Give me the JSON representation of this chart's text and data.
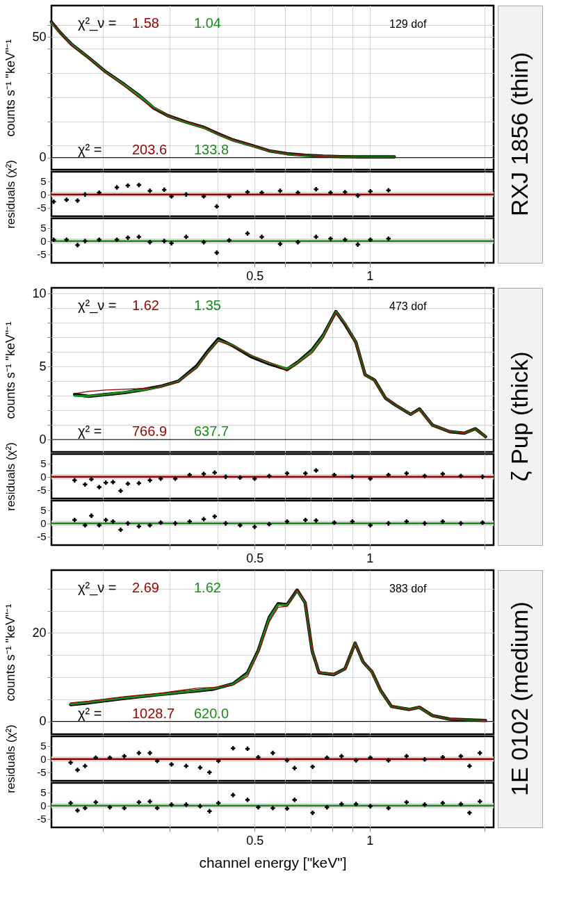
{
  "chart_data": [
    {
      "type": "line",
      "title": "RXJ 1856  (thin)",
      "ylabel": "counts  s⁻¹  \"keV\"⁻¹",
      "log": "x",
      "grid": true,
      "tick_labels": "y",
      "xlim": [
        0.147,
        2.11
      ],
      "xticks": [
        {
          "value": 0.2,
          "label": null
        },
        {
          "value": 0.3,
          "label": null
        },
        {
          "value": 0.4,
          "label": null
        },
        0.5,
        {
          "value": 0.6,
          "label": null
        },
        {
          "value": 0.7,
          "label": null
        },
        {
          "value": 0.8,
          "label": null
        },
        {
          "value": 0.9,
          "label": null
        },
        1,
        {
          "value": 2,
          "label": null
        }
      ],
      "ylim": [
        -5,
        63
      ],
      "yticks": [
        0,
        {
          "value": 5,
          "label": null
        },
        {
          "value": 15,
          "label": null
        },
        {
          "value": 25,
          "label": null
        },
        {
          "value": 35,
          "label": null
        },
        {
          "value": 45,
          "label": null
        },
        50,
        {
          "value": 55,
          "label": null
        }
      ],
      "x": [
        0.147,
        0.155,
        0.166,
        0.184,
        0.204,
        0.228,
        0.249,
        0.272,
        0.296,
        0.331,
        0.369,
        0.402,
        0.439,
        0.5,
        0.546,
        0.608,
        0.679,
        0.756,
        0.844,
        0.94,
        1.05,
        1.16
      ],
      "series": [
        {
          "color": "#000000",
          "values": [
            56.2,
            51.8,
            46.9,
            41.4,
            35.5,
            30.3,
            25.8,
            20.6,
            17.4,
            14.7,
            12.5,
            9.8,
            7.3,
            4.7,
            2.8,
            1.6,
            1.0,
            0.6,
            0.4,
            0.3,
            0.3,
            0.3
          ]
        },
        {
          "color": "#990000",
          "values": [
            56.5,
            51.6,
            46.5,
            41.0,
            35.2,
            29.6,
            24.9,
            20.3,
            17.5,
            14.9,
            12.6,
            9.9,
            7.4,
            4.8,
            2.9,
            1.6,
            1.0,
            0.6,
            0.4,
            0.3,
            0.3,
            0.3
          ]
        },
        {
          "color": "#1a8c1a",
          "values": [
            56.0,
            51.7,
            46.8,
            41.3,
            35.4,
            30.2,
            25.7,
            20.8,
            17.4,
            14.6,
            12.4,
            9.7,
            7.2,
            4.6,
            2.8,
            1.5,
            0.9,
            0.6,
            0.4,
            0.3,
            0.3,
            0.3
          ]
        }
      ],
      "ref_lines": [
        {
          "axis": "y",
          "value": 0,
          "color": "#000000"
        }
      ],
      "annotations": [
        "χ²_ν =",
        "1.58",
        "1.04",
        "129 dof",
        "χ² =",
        "203.6",
        "133.8"
      ]
    },
    {
      "type": "scatter",
      "ylabel": "residuals (χ²)",
      "log": "x",
      "grid": "x",
      "tick_labels": "y",
      "marker": "cross",
      "xlim": [
        0.147,
        2.11
      ],
      "xticks": [
        {
          "value": 0.2,
          "label": null
        },
        {
          "value": 0.3,
          "label": null
        },
        {
          "value": 0.4,
          "label": null
        },
        0.5,
        {
          "value": 0.6,
          "label": null
        },
        {
          "value": 0.7,
          "label": null
        },
        {
          "value": 0.8,
          "label": null
        },
        {
          "value": 0.9,
          "label": null
        },
        1,
        {
          "value": 2,
          "label": null
        }
      ],
      "ylim": [
        -8.2,
        8.6
      ],
      "yticks": [
        -5,
        0,
        5
      ],
      "x": [
        0.149,
        0.161,
        0.172,
        0.18,
        0.196,
        0.218,
        0.233,
        0.249,
        0.266,
        0.29,
        0.303,
        0.331,
        0.368,
        0.398,
        0.429,
        0.479,
        0.522,
        0.583,
        0.649,
        0.724,
        0.79,
        0.862,
        0.931,
        1.004,
        1.12
      ],
      "series": [
        {
          "color": "#000000",
          "values": [
            -2.7,
            -2.0,
            -2.3,
            0,
            0.7,
            2.7,
            3.4,
            3.6,
            1.4,
            1.8,
            -0.7,
            0,
            -0.7,
            -4.5,
            -0.7,
            0.9,
            0.7,
            1.4,
            0.7,
            2.0,
            0.7,
            0.9,
            -0.4,
            1.2,
            1.6
          ]
        }
      ],
      "bands": [
        {
          "axis": "y",
          "from": -1,
          "to": 1,
          "color": "#dcdcdc"
        }
      ],
      "ref_lines": [
        {
          "axis": "y",
          "value": 0,
          "color": "#990000"
        }
      ]
    },
    {
      "type": "scatter",
      "log": "x",
      "grid": "x",
      "marker": "cross",
      "xlim": [
        0.147,
        2.11
      ],
      "xticks": [
        {
          "value": 0.2,
          "label": null
        },
        {
          "value": 0.3,
          "label": null
        },
        {
          "value": 0.4,
          "label": null
        },
        0.5,
        {
          "value": 0.6,
          "label": null
        },
        {
          "value": 0.7,
          "label": null
        },
        {
          "value": 0.8,
          "label": null
        },
        {
          "value": 0.9,
          "label": null
        },
        1,
        {
          "value": 2,
          "label": null
        }
      ],
      "ylim": [
        -8.2,
        8.6
      ],
      "yticks": [
        -5,
        0,
        5
      ],
      "x": [
        0.149,
        0.161,
        0.172,
        0.18,
        0.196,
        0.218,
        0.233,
        0.249,
        0.266,
        0.29,
        0.303,
        0.331,
        0.368,
        0.398,
        0.429,
        0.479,
        0.522,
        0.583,
        0.649,
        0.724,
        0.79,
        0.862,
        0.931,
        1.004,
        1.12
      ],
      "series": [
        {
          "color": "#000000",
          "values": [
            0.5,
            0.5,
            -1.5,
            0,
            0.5,
            0.5,
            1.3,
            1.6,
            -0.4,
            0,
            -0.8,
            1.6,
            -0.4,
            -4.4,
            0.3,
            2.9,
            1.6,
            -1.1,
            -0.4,
            1.6,
            0.9,
            0.5,
            -1.3,
            0.5,
            0.9
          ]
        }
      ],
      "bands": [
        {
          "axis": "y",
          "from": -1,
          "to": 1,
          "color": "#dcdcdc"
        }
      ],
      "ref_lines": [
        {
          "axis": "y",
          "value": 0,
          "color": "#1a8c1a"
        }
      ]
    },
    {
      "type": "line",
      "title": "ζ Pup  (thick)",
      "ylabel": "counts  s⁻¹  \"keV\"⁻¹",
      "log": "x",
      "grid": true,
      "tick_labels": "y",
      "xlim": [
        0.147,
        2.11
      ],
      "xticks": [
        {
          "value": 0.2,
          "label": null
        },
        {
          "value": 0.3,
          "label": null
        },
        {
          "value": 0.4,
          "label": null
        },
        0.5,
        {
          "value": 0.6,
          "label": null
        },
        {
          "value": 0.7,
          "label": null
        },
        {
          "value": 0.8,
          "label": null
        },
        {
          "value": 0.9,
          "label": null
        },
        1,
        {
          "value": 2,
          "label": null
        }
      ],
      "ylim": [
        -0.85,
        10.4
      ],
      "yticks": [
        0,
        {
          "value": 1,
          "label": null
        },
        {
          "value": 2,
          "label": null
        },
        {
          "value": 3,
          "label": null
        },
        {
          "value": 4,
          "label": null
        },
        5,
        {
          "value": 6,
          "label": null
        },
        {
          "value": 7,
          "label": null
        },
        {
          "value": 8,
          "label": null
        },
        {
          "value": 9,
          "label": null
        },
        10
      ],
      "x": [
        0.169,
        0.184,
        0.204,
        0.228,
        0.254,
        0.284,
        0.316,
        0.353,
        0.377,
        0.402,
        0.439,
        0.49,
        0.546,
        0.608,
        0.649,
        0.708,
        0.756,
        0.816,
        0.862,
        0.92,
        0.973,
        1.03,
        1.1,
        1.17,
        1.28,
        1.35,
        1.46,
        1.62,
        1.77,
        1.89,
        2.01
      ],
      "series": [
        {
          "color": "#000000",
          "values": [
            3.09,
            2.96,
            3.09,
            3.21,
            3.41,
            3.65,
            4.0,
            5.06,
            6.05,
            6.91,
            6.42,
            5.68,
            5.19,
            4.81,
            5.31,
            6.17,
            7.16,
            8.77,
            7.9,
            6.67,
            4.44,
            4.07,
            2.84,
            2.35,
            1.73,
            2.1,
            0.99,
            0.54,
            0.44,
            0.74,
            0.2
          ]
        },
        {
          "color": "#990000",
          "values": [
            3.15,
            3.3,
            3.4,
            3.45,
            3.5,
            3.6,
            3.95,
            4.9,
            5.9,
            6.75,
            6.4,
            5.75,
            5.3,
            4.7,
            5.2,
            5.95,
            6.95,
            8.7,
            7.9,
            6.6,
            4.45,
            4.05,
            2.85,
            2.35,
            1.75,
            2.05,
            1.0,
            0.55,
            0.45,
            0.72,
            0.2
          ]
        },
        {
          "color": "#1a8c1a",
          "values": [
            3.0,
            2.98,
            3.1,
            3.25,
            3.4,
            3.62,
            3.98,
            4.95,
            5.95,
            6.8,
            6.45,
            5.75,
            5.25,
            4.85,
            5.28,
            6.1,
            7.1,
            8.75,
            7.95,
            6.65,
            4.45,
            4.05,
            2.85,
            2.35,
            1.74,
            2.06,
            1.0,
            0.55,
            0.45,
            0.72,
            0.2
          ]
        }
      ],
      "ref_lines": [
        {
          "axis": "y",
          "value": 0,
          "color": "#000000"
        }
      ],
      "annotations": [
        "χ²_ν =",
        "1.62",
        "1.35",
        "473 dof",
        "χ² =",
        "766.9",
        "637.7"
      ]
    },
    {
      "type": "scatter",
      "ylabel": "residuals (χ²)",
      "log": "x",
      "grid": "x",
      "tick_labels": "y",
      "marker": "cross",
      "xlim": [
        0.147,
        2.11
      ],
      "xticks": [
        {
          "value": 0.2,
          "label": null
        },
        {
          "value": 0.3,
          "label": null
        },
        {
          "value": 0.4,
          "label": null
        },
        0.5,
        {
          "value": 0.6,
          "label": null
        },
        {
          "value": 0.7,
          "label": null
        },
        {
          "value": 0.8,
          "label": null
        },
        {
          "value": 0.9,
          "label": null
        },
        1,
        {
          "value": 2,
          "label": null
        }
      ],
      "ylim": [
        -8.2,
        8.6
      ],
      "yticks": [
        -5,
        0,
        5
      ],
      "x": [
        0.169,
        0.18,
        0.187,
        0.196,
        0.204,
        0.213,
        0.223,
        0.233,
        0.249,
        0.266,
        0.284,
        0.31,
        0.338,
        0.368,
        0.393,
        0.42,
        0.458,
        0.5,
        0.546,
        0.608,
        0.679,
        0.724,
        0.808,
        0.901,
        1.004,
        1.12,
        1.249,
        1.393,
        1.553,
        1.732,
        1.974
      ],
      "series": [
        {
          "color": "#000000",
          "values": [
            -1.3,
            -2.9,
            -0.9,
            -3.9,
            -2.2,
            -2.0,
            -5.3,
            -2.6,
            -2.4,
            -1.3,
            -0.7,
            -0.7,
            0.7,
            1.1,
            1.6,
            0,
            -0.3,
            -0.7,
            0.3,
            1.3,
            1.3,
            2.4,
            0.7,
            0,
            -0.7,
            0.7,
            1.3,
            0.3,
            1.1,
            0.3,
            0
          ]
        }
      ],
      "bands": [
        {
          "axis": "y",
          "from": -1,
          "to": 1,
          "color": "#dcdcdc"
        }
      ],
      "ref_lines": [
        {
          "axis": "y",
          "value": 0,
          "color": "#990000"
        }
      ]
    },
    {
      "type": "scatter",
      "log": "x",
      "grid": "x",
      "marker": "cross",
      "xlim": [
        0.147,
        2.11
      ],
      "xticks": [
        {
          "value": 0.2,
          "label": null
        },
        {
          "value": 0.3,
          "label": null
        },
        {
          "value": 0.4,
          "label": null
        },
        0.5,
        {
          "value": 0.6,
          "label": null
        },
        {
          "value": 0.7,
          "label": null
        },
        {
          "value": 0.8,
          "label": null
        },
        {
          "value": 0.9,
          "label": null
        },
        1,
        {
          "value": 2,
          "label": null
        }
      ],
      "ylim": [
        -8.2,
        8.6
      ],
      "yticks": [
        -5,
        0,
        5
      ],
      "x": [
        0.169,
        0.18,
        0.187,
        0.196,
        0.204,
        0.213,
        0.223,
        0.233,
        0.249,
        0.266,
        0.284,
        0.31,
        0.338,
        0.368,
        0.393,
        0.42,
        0.458,
        0.5,
        0.546,
        0.608,
        0.679,
        0.724,
        0.808,
        0.901,
        1.004,
        1.12,
        1.249,
        1.393,
        1.553,
        1.732,
        1.974
      ],
      "series": [
        {
          "color": "#000000",
          "values": [
            1.3,
            -0.7,
            2.9,
            -0.7,
            1.3,
            0.7,
            -2.4,
            0,
            -1.1,
            -0.7,
            0.3,
            0,
            0.7,
            1.6,
            2.6,
            0,
            -0.7,
            -1.3,
            -0.3,
            0.7,
            1.3,
            1.1,
            0.3,
            0.7,
            -0.7,
            0,
            0.7,
            0,
            0.7,
            0,
            0.3
          ]
        }
      ],
      "bands": [
        {
          "axis": "y",
          "from": -1,
          "to": 1,
          "color": "#dcdcdc"
        }
      ],
      "ref_lines": [
        {
          "axis": "y",
          "value": 0,
          "color": "#1a8c1a"
        }
      ]
    },
    {
      "type": "line",
      "title": "1E 0102  (medium)",
      "ylabel": "counts  s⁻¹  \"keV\"⁻¹",
      "log": "x",
      "grid": true,
      "tick_labels": "y",
      "xlim": [
        0.147,
        2.11
      ],
      "xticks": [
        {
          "value": 0.2,
          "label": null
        },
        {
          "value": 0.3,
          "label": null
        },
        {
          "value": 0.4,
          "label": null
        },
        0.5,
        {
          "value": 0.6,
          "label": null
        },
        {
          "value": 0.7,
          "label": null
        },
        {
          "value": 0.8,
          "label": null
        },
        {
          "value": 0.9,
          "label": null
        },
        1,
        {
          "value": 2,
          "label": null
        }
      ],
      "ylim": [
        -2.9,
        34.2
      ],
      "yticks": [
        0,
        {
          "value": 5,
          "label": null
        },
        {
          "value": 10,
          "label": null
        },
        {
          "value": 15,
          "label": null
        },
        20,
        {
          "value": 25,
          "label": null
        },
        {
          "value": 30,
          "label": null
        }
      ],
      "x": [
        0.165,
        0.184,
        0.228,
        0.284,
        0.353,
        0.39,
        0.439,
        0.479,
        0.511,
        0.546,
        0.576,
        0.608,
        0.646,
        0.678,
        0.707,
        0.737,
        0.805,
        0.862,
        0.916,
        0.96,
        1.014,
        1.07,
        1.14,
        1.27,
        1.35,
        1.46,
        1.62,
        2.01
      ],
      "series": [
        {
          "color": "#000000",
          "values": [
            3.8,
            4.2,
            5.2,
            6.1,
            6.9,
            7.3,
            8.5,
            11.0,
            16.0,
            23.5,
            26.6,
            26.4,
            29.7,
            26.8,
            16.0,
            11.0,
            10.6,
            11.9,
            17.7,
            13.5,
            11.2,
            6.9,
            3.4,
            2.7,
            3.2,
            1.3,
            0.5,
            0.2
          ]
        },
        {
          "color": "#990000",
          "values": [
            4.2,
            4.6,
            5.6,
            6.4,
            7.5,
            7.7,
            8.2,
            10.2,
            15.5,
            22.5,
            25.8,
            26.0,
            29.8,
            27.2,
            16.5,
            11.2,
            10.8,
            11.8,
            17.9,
            13.6,
            11.3,
            7.0,
            3.5,
            2.6,
            3.4,
            1.3,
            0.5,
            0.2
          ]
        },
        {
          "color": "#1a8c1a",
          "values": [
            3.9,
            4.3,
            5.3,
            6.1,
            7.0,
            7.4,
            8.4,
            10.8,
            15.8,
            23.3,
            26.4,
            26.3,
            29.6,
            26.9,
            16.2,
            11.1,
            10.7,
            11.8,
            17.8,
            13.5,
            11.2,
            6.9,
            3.4,
            2.7,
            3.2,
            1.3,
            0.5,
            0.2
          ]
        }
      ],
      "ref_lines": [
        {
          "axis": "y",
          "value": 0,
          "color": "#000000"
        }
      ],
      "annotations": [
        "χ²_ν =",
        "2.69",
        "1.62",
        "383 dof",
        "χ² =",
        "1028.7",
        "620.0"
      ]
    },
    {
      "type": "scatter",
      "ylabel": "residuals (χ²)",
      "log": "x",
      "grid": "x",
      "tick_labels": "y",
      "marker": "cross",
      "xlim": [
        0.147,
        2.11
      ],
      "xticks": [
        {
          "value": 0.2,
          "label": null
        },
        {
          "value": 0.3,
          "label": null
        },
        {
          "value": 0.4,
          "label": null
        },
        0.5,
        {
          "value": 0.6,
          "label": null
        },
        {
          "value": 0.7,
          "label": null
        },
        {
          "value": 0.8,
          "label": null
        },
        {
          "value": 0.9,
          "label": null
        },
        1,
        {
          "value": 2,
          "label": null
        }
      ],
      "ylim": [
        -8.2,
        8.6
      ],
      "yticks": [
        -5,
        0,
        5
      ],
      "x": [
        0.165,
        0.172,
        0.18,
        0.192,
        0.209,
        0.228,
        0.249,
        0.266,
        0.278,
        0.303,
        0.331,
        0.36,
        0.381,
        0.402,
        0.439,
        0.479,
        0.511,
        0.558,
        0.608,
        0.636,
        0.709,
        0.773,
        0.844,
        0.921,
        1.004,
        1.12,
        1.249,
        1.393,
        1.553,
        1.732,
        1.825,
        1.943
      ],
      "series": [
        {
          "color": "#000000",
          "values": [
            -1.3,
            -4.1,
            -2.6,
            0.5,
            0.5,
            1.1,
            2.3,
            2.3,
            -0.7,
            -2.0,
            -2.6,
            -3.2,
            -5.0,
            -0.7,
            4.1,
            3.9,
            0.7,
            2.3,
            -0.5,
            -3.4,
            -2.9,
            0.5,
            1.1,
            -0.5,
            0.5,
            -0.5,
            1.1,
            -0.1,
            0.7,
            1.1,
            -2.6,
            2.3
          ]
        }
      ],
      "bands": [
        {
          "axis": "y",
          "from": -1,
          "to": 1,
          "color": "#dcdcdc"
        }
      ],
      "ref_lines": [
        {
          "axis": "y",
          "value": 0,
          "color": "#990000"
        }
      ]
    },
    {
      "type": "scatter",
      "xlabel": "channel energy  [\"keV\"]",
      "log": "x",
      "grid": "x",
      "marker": "cross",
      "xlim": [
        0.147,
        2.11
      ],
      "xticks": [
        {
          "value": 0.2,
          "label": null
        },
        {
          "value": 0.3,
          "label": null
        },
        {
          "value": 0.4,
          "label": null
        },
        0.5,
        {
          "value": 0.6,
          "label": null
        },
        {
          "value": 0.7,
          "label": null
        },
        {
          "value": 0.8,
          "label": null
        },
        {
          "value": 0.9,
          "label": null
        },
        1,
        {
          "value": 2,
          "label": null
        }
      ],
      "ylim": [
        -8.2,
        8.6
      ],
      "yticks": [
        -5,
        0,
        5
      ],
      "x": [
        0.165,
        0.172,
        0.18,
        0.192,
        0.209,
        0.228,
        0.249,
        0.266,
        0.278,
        0.303,
        0.331,
        0.36,
        0.381,
        0.402,
        0.439,
        0.479,
        0.511,
        0.558,
        0.608,
        0.636,
        0.709,
        0.773,
        0.844,
        0.921,
        1.004,
        1.12,
        1.249,
        1.393,
        1.553,
        1.732,
        1.825,
        1.943
      ],
      "series": [
        {
          "color": "#000000",
          "values": [
            1.0,
            -1.8,
            -0.9,
            1.3,
            -0.6,
            -0.9,
            1.3,
            1.6,
            -0.9,
            0.4,
            0.4,
            -0.2,
            -2.1,
            1.0,
            4.0,
            2.2,
            -0.6,
            -0.9,
            -1.1,
            2.2,
            -2.7,
            -0.6,
            0.6,
            0.6,
            -0.2,
            -0.9,
            1.3,
            0.4,
            1.0,
            0.6,
            -2.7,
            1.6
          ]
        }
      ],
      "bands": [
        {
          "axis": "y",
          "from": -1,
          "to": 1,
          "color": "#dcdcdc"
        }
      ],
      "ref_lines": [
        {
          "axis": "y",
          "value": 0,
          "color": "#1a8c1a"
        }
      ]
    }
  ]
}
